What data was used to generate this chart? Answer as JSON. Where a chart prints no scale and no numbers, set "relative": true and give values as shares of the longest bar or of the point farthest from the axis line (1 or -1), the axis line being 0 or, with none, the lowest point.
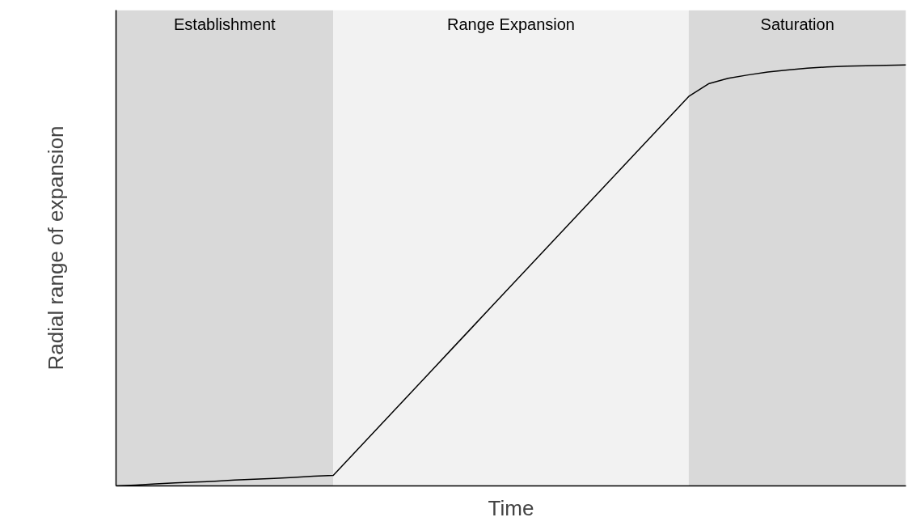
{
  "chart_data": {
    "type": "line",
    "relative": true,
    "xlabel": "Time",
    "ylabel": "Radial range of expansion",
    "tick_labels": false,
    "marker": "none",
    "line_style": "solid",
    "categories": [
      null,
      null,
      null,
      null,
      null,
      null,
      null,
      null,
      null,
      null,
      null,
      null,
      null,
      null,
      null,
      null,
      null,
      null,
      null,
      null,
      null,
      null,
      null,
      null,
      null,
      null,
      null,
      null,
      null,
      null,
      null,
      null,
      null,
      null,
      null,
      null,
      null,
      null,
      null,
      null,
      null
    ],
    "series": [
      {
        "color": "#000000",
        "values": [
          0,
          0.002,
          0.005,
          0.007,
          0.009,
          0.011,
          0.014,
          0.016,
          0.018,
          0.02,
          0.023,
          0.025,
          0.075,
          0.125,
          0.175,
          0.225,
          0.275,
          0.325,
          0.375,
          0.425,
          0.475,
          0.525,
          0.575,
          0.625,
          0.675,
          0.725,
          0.775,
          0.825,
          0.875,
          0.925,
          0.955,
          0.968,
          0.976,
          0.983,
          0.988,
          0.992,
          0.995,
          0.997,
          0.998,
          0.999,
          1
        ]
      }
    ],
    "annotations": [
      "Establishment",
      "Range Expansion",
      "Saturation"
    ]
  }
}
